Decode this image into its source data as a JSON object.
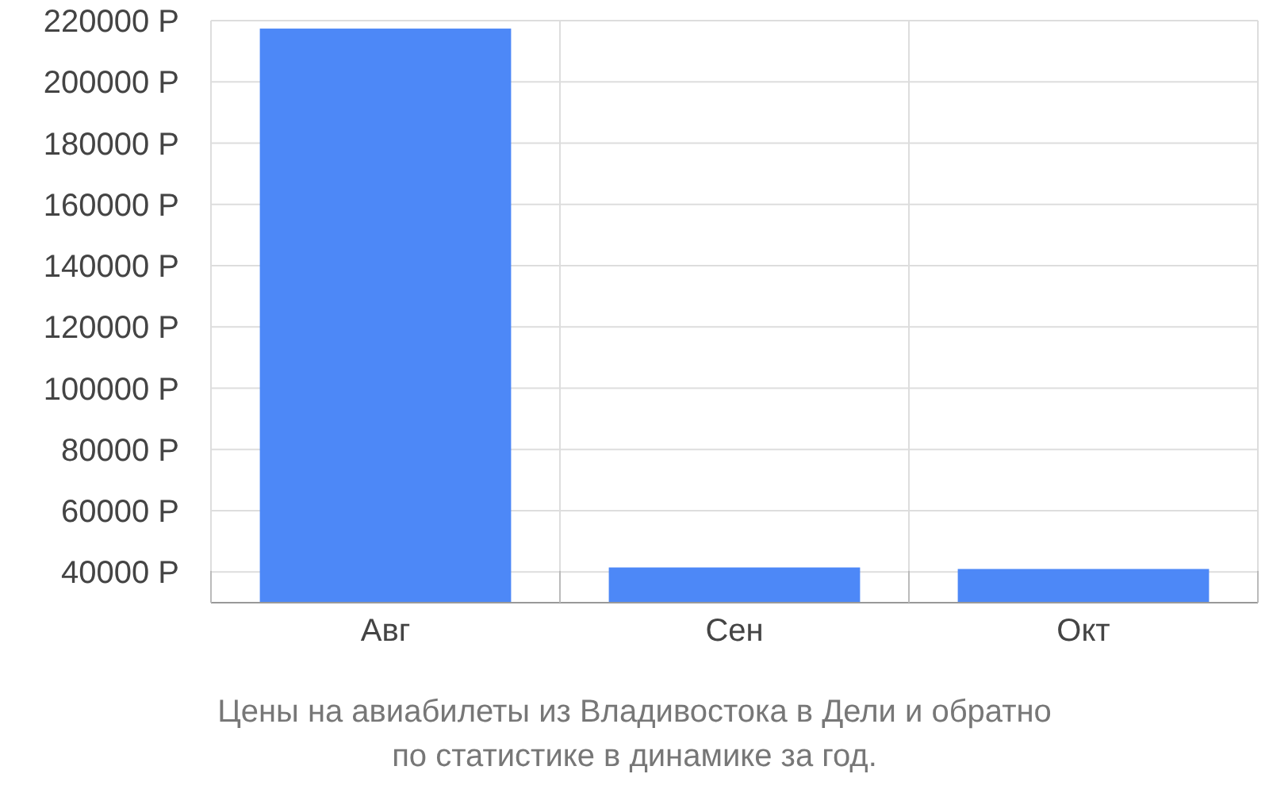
{
  "chart_data": {
    "type": "bar",
    "title": "Цены на авиабилеты из Владивостока в Дели и обратно",
    "subtitle": "по статистике в динамике за год.",
    "categories": [
      "Авг",
      "Сен",
      "Окт"
    ],
    "values": [
      217400,
      41500,
      41000
    ],
    "color": "#4d88f7",
    "ylim": [
      30000,
      220000
    ],
    "yticks": [
      {
        "value": 40000,
        "label": "40000 Р"
      },
      {
        "value": 60000,
        "label": "60000 Р"
      },
      {
        "value": 80000,
        "label": "80000 Р"
      },
      {
        "value": 100000,
        "label": "100000 Р"
      },
      {
        "value": 120000,
        "label": "120000 Р"
      },
      {
        "value": 140000,
        "label": "140000 Р"
      },
      {
        "value": 160000,
        "label": "160000 Р"
      },
      {
        "value": 180000,
        "label": "180000 Р"
      },
      {
        "value": 200000,
        "label": "200000 Р"
      },
      {
        "value": 220000,
        "label": "220000 Р"
      }
    ],
    "grid": true
  }
}
